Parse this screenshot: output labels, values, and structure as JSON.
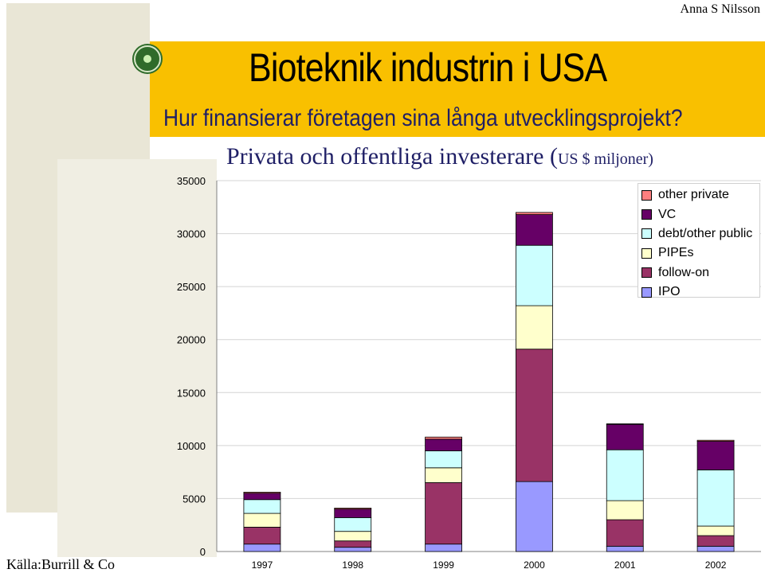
{
  "header": {
    "author": "Anna S Nilsson",
    "title": "Bioteknik industrin i USA",
    "subtitle": "Hur finansierar företagen sina långa utvecklingsprojekt?"
  },
  "source": "Källa:Burrill & Co",
  "chart_data": {
    "type": "bar",
    "stacked": true,
    "title_main": "Privata och offentliga investerare (",
    "title_unit": "US $ miljoner)",
    "categories": [
      "1997",
      "1998",
      "1999",
      "2000",
      "2001",
      "2002"
    ],
    "y_ticks": [
      "0",
      "5000",
      "10000",
      "15000",
      "20000",
      "25000",
      "30000",
      "35000"
    ],
    "ylim": [
      0,
      35000
    ],
    "grid": true,
    "legend_position": "top-right",
    "series": [
      {
        "name": "IPO",
        "color": "#9999ff",
        "values": [
          700,
          400,
          700,
          6600,
          500,
          500
        ]
      },
      {
        "name": "follow-on",
        "color": "#993366",
        "values": [
          1600,
          600,
          5800,
          12500,
          2500,
          1000
        ]
      },
      {
        "name": "PIPEs",
        "color": "#ffffcc",
        "values": [
          1300,
          900,
          1400,
          4100,
          1800,
          900
        ]
      },
      {
        "name": "debt/other public",
        "color": "#ccffff",
        "values": [
          1300,
          1300,
          1600,
          5700,
          4800,
          5300
        ]
      },
      {
        "name": "VC",
        "color": "#660066",
        "values": [
          600,
          800,
          1100,
          2900,
          2400,
          2700
        ]
      },
      {
        "name": "other private",
        "color": "#ff8080",
        "values": [
          100,
          100,
          200,
          200,
          50,
          100
        ]
      }
    ]
  }
}
